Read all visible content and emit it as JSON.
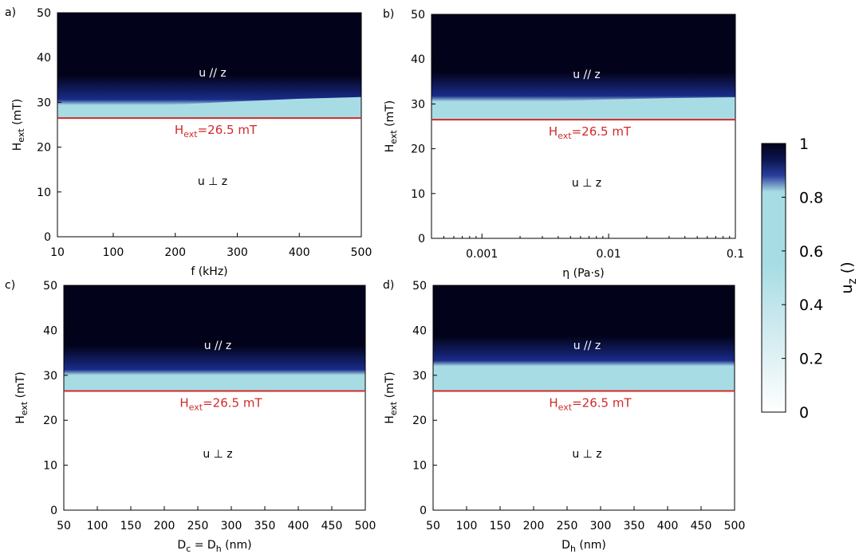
{
  "colors": {
    "top": "#02031a",
    "band": "#1a2c8a",
    "light": "#a8dce4",
    "bottom": "#ffffff",
    "hline": "#d12a2a",
    "label_top": "#ffffff",
    "label_bottom": "#000000"
  },
  "colorbar": {
    "ticks": [
      "0",
      "0.2",
      "0.4",
      "0.6",
      "0.8",
      "1"
    ],
    "label_main": "u",
    "label_sub": "z",
    "label_tail": " ()"
  },
  "chart_data": [
    {
      "panel": "a)",
      "type": "heatmap",
      "x_scale": "linear",
      "xlim": [
        10,
        500
      ],
      "x_ticks": [
        "10",
        "100",
        "200",
        "300",
        "400",
        "500"
      ],
      "xlabel": "f (kHz)",
      "ylim": [
        0,
        50
      ],
      "y_ticks": [
        "0",
        "10",
        "20",
        "30",
        "40",
        "50"
      ],
      "ylabel_main": "H",
      "ylabel_sub": "ext",
      "ylabel_tail": " (mT)",
      "transition_x": [
        10,
        30,
        60,
        100,
        200,
        300,
        400,
        500
      ],
      "transition_y": [
        26.5,
        27,
        27.8,
        28.5,
        29.5,
        30.2,
        30.8,
        31.2
      ],
      "line_y": 26.5,
      "line_label_main": "H",
      "line_label_sub": "ext",
      "line_label_tail": "=26.5 mT",
      "region_upper": "u // z",
      "region_lower": "u ⊥ z"
    },
    {
      "panel": "b)",
      "type": "heatmap",
      "x_scale": "log",
      "xlim": [
        0.0004,
        0.1
      ],
      "x_ticks": [
        "0.001",
        "0.01",
        "0.1"
      ],
      "x_tick_values": [
        0.001,
        0.01,
        0.1
      ],
      "xlabel": "η (Pa·s)",
      "ylim": [
        0,
        50
      ],
      "y_ticks": [
        "0",
        "10",
        "20",
        "30",
        "40",
        "50"
      ],
      "ylabel_main": "H",
      "ylabel_sub": "ext",
      "ylabel_tail": " (mT)",
      "transition_x": [
        0.0004,
        0.001,
        0.003,
        0.01,
        0.03,
        0.1
      ],
      "transition_y": [
        28.5,
        29.5,
        30.5,
        31,
        31.3,
        31.5
      ],
      "line_y": 26.5,
      "line_label_main": "H",
      "line_label_sub": "ext",
      "line_label_tail": "=26.5 mT",
      "region_upper": "u // z",
      "region_lower": "u ⊥ z"
    },
    {
      "panel": "c)",
      "type": "heatmap",
      "x_scale": "linear",
      "xlim": [
        50,
        500
      ],
      "x_ticks": [
        "50",
        "100",
        "150",
        "200",
        "250",
        "300",
        "350",
        "400",
        "450",
        "500"
      ],
      "xlabel_main": "D",
      "xlabel_sub1": "c",
      "xlabel_mid": " = D",
      "xlabel_sub2": "h",
      "xlabel_tail": " (nm)",
      "ylim": [
        0,
        50
      ],
      "y_ticks": [
        "0",
        "10",
        "20",
        "30",
        "40",
        "50"
      ],
      "ylabel_main": "H",
      "ylabel_sub": "ext",
      "ylabel_tail": " (mT)",
      "transition_x": [
        50,
        500
      ],
      "transition_y": [
        29.5,
        29.5
      ],
      "line_y": 26.5,
      "line_label_main": "H",
      "line_label_sub": "ext",
      "line_label_tail": "=26.5 mT",
      "region_upper": "u // z",
      "region_lower": "u ⊥ z"
    },
    {
      "panel": "d)",
      "type": "heatmap",
      "x_scale": "linear",
      "xlim": [
        50,
        500
      ],
      "x_ticks": [
        "50",
        "100",
        "150",
        "200",
        "250",
        "300",
        "350",
        "400",
        "450",
        "500"
      ],
      "xlabel_main": "D",
      "xlabel_sub1": "h",
      "xlabel_tail": " (nm)",
      "ylim": [
        0,
        50
      ],
      "y_ticks": [
        "0",
        "10",
        "20",
        "30",
        "40",
        "50"
      ],
      "ylabel_main": "H",
      "ylabel_sub": "ext",
      "ylabel_tail": " (mT)",
      "transition_x": [
        50,
        500
      ],
      "transition_y": [
        31.5,
        31.5
      ],
      "line_y": 26.5,
      "line_label_main": "H",
      "line_label_sub": "ext",
      "line_label_tail": "=26.5 mT",
      "region_upper": "u // z",
      "region_lower": "u ⊥ z"
    }
  ]
}
